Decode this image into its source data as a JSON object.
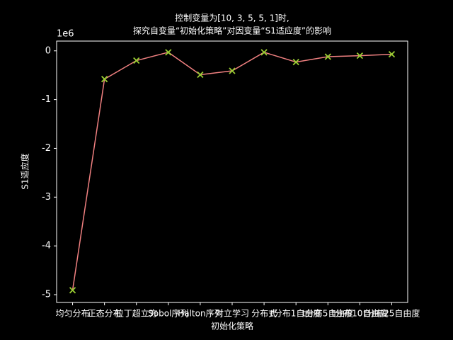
{
  "chart_data": {
    "type": "line",
    "title": [
      "控制变量为[10, 3, 5, 5, 1]时,",
      "探究自变量“初始化策略”对因变量“S1适应度”的影响"
    ],
    "xlabel": "初始化策略",
    "ylabel": "S1适应度",
    "y_offset_label": "1e6",
    "categories": [
      "均匀分布",
      "正态分布",
      "拉丁超立方",
      "Sobol序列",
      "Halton序列",
      "对立学习",
      "分布式",
      "t分布1自由度",
      "t分布5自由度",
      "t分布10自由度",
      "t分布25自由度"
    ],
    "series": [
      {
        "name": "S1适应度",
        "color": "#f08080",
        "marker_color": "#9acd32",
        "values": [
          -4.91,
          -0.58,
          -0.2,
          -0.03,
          -0.49,
          -0.41,
          -0.03,
          -0.23,
          -0.12,
          -0.1,
          -0.07
        ]
      }
    ],
    "ylim": [
      -5.16,
      0.2
    ],
    "yticks": [
      0,
      -1,
      -2,
      -3,
      -4,
      -5
    ]
  }
}
